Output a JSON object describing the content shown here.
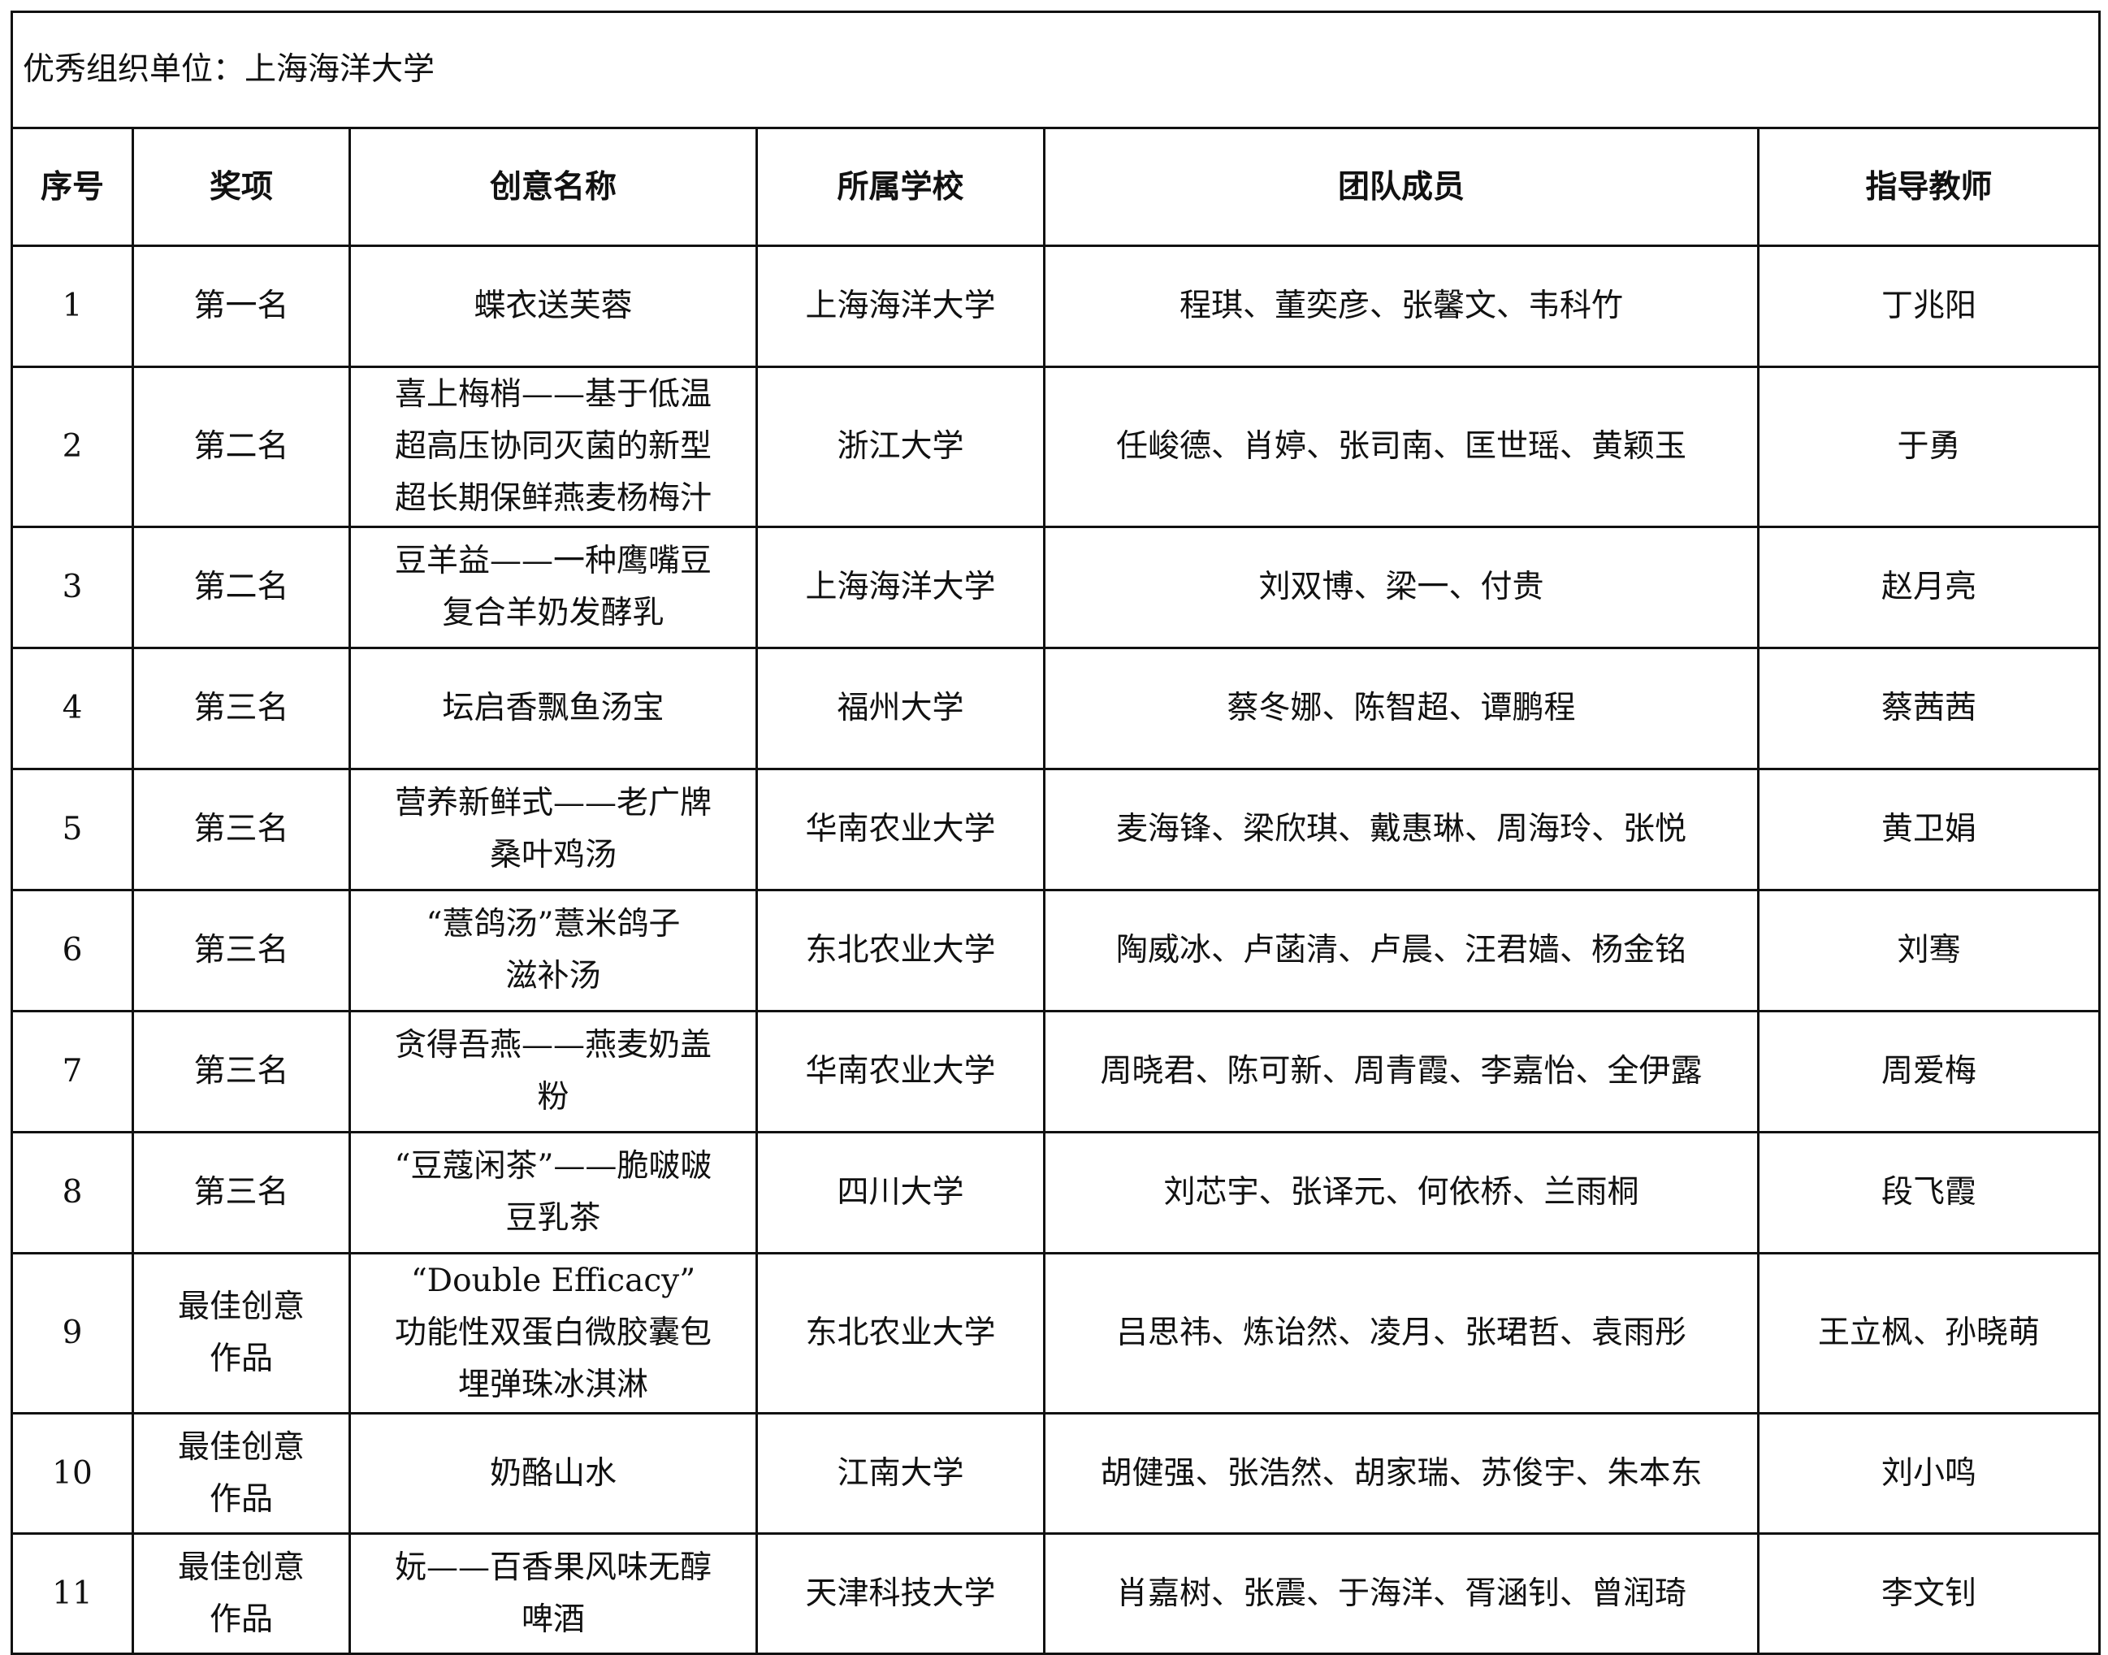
{
  "org_line": "优秀组织单位：上海海洋大学",
  "headers": [
    "序号",
    "奖项",
    "创意名称",
    "所属学校",
    "团队成员",
    "指导教师"
  ],
  "rows": [
    {
      "no": "1",
      "award": "第一名",
      "idea": "蝶衣送芙蓉",
      "school": "上海海洋大学",
      "members": "程琪、董奕彦、张馨文、韦科竹",
      "teacher": "丁兆阳"
    },
    {
      "no": "2",
      "award": "第二名",
      "idea": "喜上梅梢——基于低温\n超高压协同灭菌的新型\n超长期保鲜燕麦杨梅汁",
      "school": "浙江大学",
      "members": "任峻德、肖婷、张司南、匡世瑶、黄颖玉",
      "teacher": "于勇"
    },
    {
      "no": "3",
      "award": "第二名",
      "idea": "豆羊益——一种鹰嘴豆\n复合羊奶发酵乳",
      "school": "上海海洋大学",
      "members": "刘双博、梁一、付贵",
      "teacher": "赵月亮"
    },
    {
      "no": "4",
      "award": "第三名",
      "idea": "坛启香飘鱼汤宝",
      "school": "福州大学",
      "members": "蔡冬娜、陈智超、谭鹏程",
      "teacher": "蔡茜茜"
    },
    {
      "no": "5",
      "award": "第三名",
      "idea": "营养新鲜式——老广牌\n桑叶鸡汤",
      "school": "华南农业大学",
      "members": "麦海锋、梁欣琪、戴惠琳、周海玲、张悦",
      "teacher": "黄卫娟"
    },
    {
      "no": "6",
      "award": "第三名",
      "idea": "“薏鸽汤”薏米鸽子\n滋补汤",
      "school": "东北农业大学",
      "members": "陶威冰、卢菡清、卢晨、汪君嫱、杨金铭",
      "teacher": "刘骞"
    },
    {
      "no": "7",
      "award": "第三名",
      "idea": "贪得吾燕——燕麦奶盖\n粉",
      "school": "华南农业大学",
      "members": "周晓君、陈可新、周青霞、李嘉怡、全伊露",
      "teacher": "周爱梅"
    },
    {
      "no": "8",
      "award": "第三名",
      "idea": "“豆蔻闲茶”——脆啵啵\n豆乳茶",
      "school": "四川大学",
      "members": "刘芯宇、张译元、何依桥、兰雨桐",
      "teacher": "段飞霞"
    },
    {
      "no": "9",
      "award": "最佳创意\n作品",
      "idea": "“Double Efficacy”\n功能性双蛋白微胶囊包\n埋弹珠冰淇淋",
      "school": "东北农业大学",
      "members": "吕思祎、炼诒然、凌月、张珺哲、袁雨彤",
      "teacher": "王立枫、孙晓萌"
    },
    {
      "no": "10",
      "award": "最佳创意\n作品",
      "idea": "奶酪山水",
      "school": "江南大学",
      "members": "胡健强、张浩然、胡家瑞、苏俊宇、朱本东",
      "teacher": "刘小鸣"
    },
    {
      "no": "11",
      "award": "最佳创意\n作品",
      "idea": "妧——百香果风味无醇\n啤酒",
      "school": "天津科技大学",
      "members": "肖嘉树、张震、于海洋、胥涵钊、曾润琦",
      "teacher": "李文钊"
    }
  ]
}
